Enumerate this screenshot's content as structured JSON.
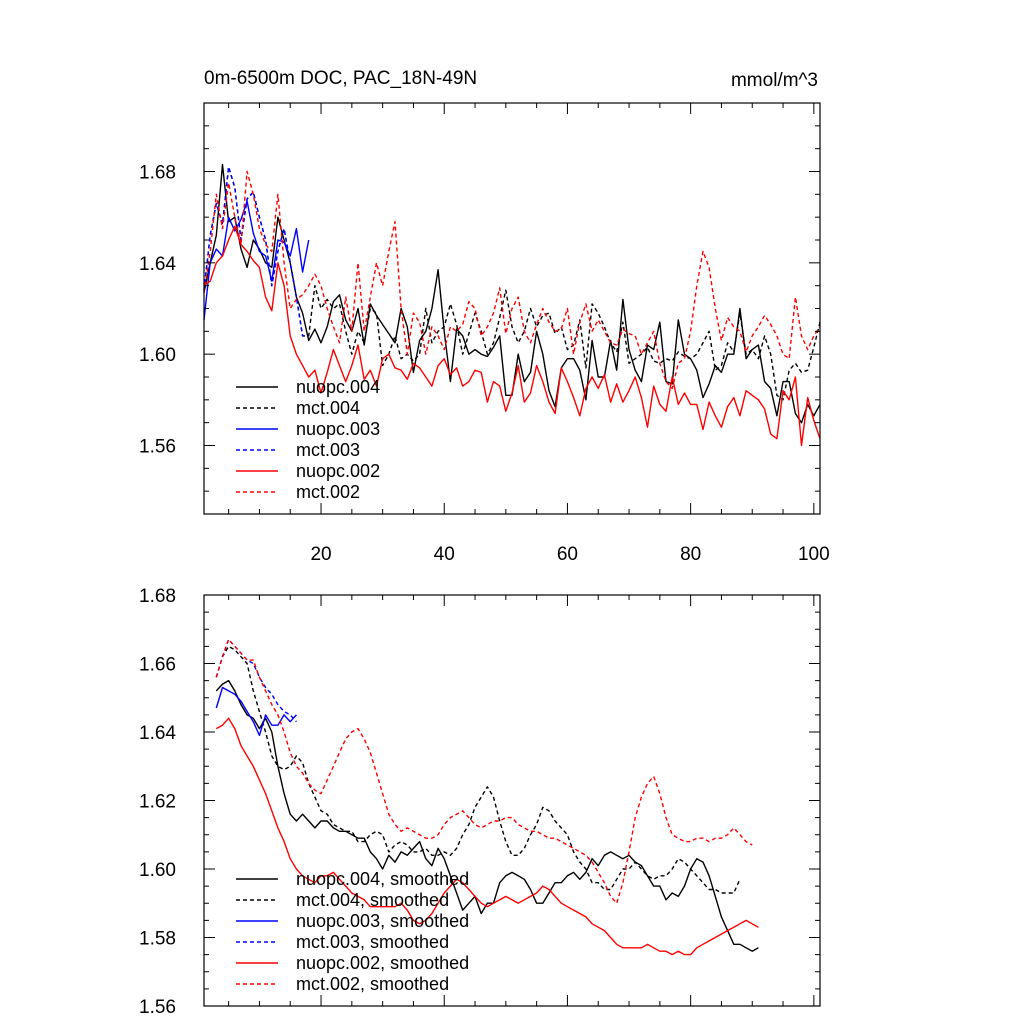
{
  "colors": {
    "black": "#000000",
    "blue": "#0000ff",
    "red": "#ff0000"
  },
  "chart_data": [
    {
      "type": "line",
      "title": "0m-6500m DOC, PAC_18N-49N",
      "units": "mmol/m^3",
      "xlim": [
        1,
        101
      ],
      "ylim": [
        1.53,
        1.71
      ],
      "xticks": [
        20,
        40,
        60,
        80,
        100
      ],
      "xtick_labels": [
        "20",
        "40",
        "60",
        "80",
        "100"
      ],
      "yticks": [
        1.56,
        1.6,
        1.64,
        1.68
      ],
      "ytick_labels": [
        "1.56",
        "1.60",
        "1.64",
        "1.68"
      ],
      "legend_position": "bottom-left",
      "series": [
        {
          "name": "nuopc.004",
          "color": "black",
          "dash": false,
          "x_start": 1,
          "values": [
            1.627,
            1.64,
            1.652,
            1.683,
            1.658,
            1.66,
            1.646,
            1.638,
            1.65,
            1.646,
            1.64,
            1.638,
            1.66,
            1.65,
            1.64,
            1.625,
            1.618,
            1.606,
            1.611,
            1.605,
            1.612,
            1.623,
            1.626,
            1.615,
            1.61,
            1.62,
            1.604,
            1.622,
            1.617,
            1.613,
            1.609,
            1.605,
            1.62,
            1.612,
            1.592,
            1.606,
            1.61,
            1.62,
            1.637,
            1.61,
            1.588,
            1.611,
            1.608,
            1.6,
            1.602,
            1.6,
            1.599,
            1.603,
            1.608,
            1.582,
            1.582,
            1.6,
            1.588,
            1.592,
            1.61,
            1.6,
            1.584,
            1.577,
            1.594,
            1.598,
            1.598,
            1.593,
            1.58,
            1.606,
            1.59,
            1.59,
            1.606,
            1.593,
            1.624,
            1.602,
            1.593,
            1.588,
            1.604,
            1.602,
            1.614,
            1.588,
            1.587,
            1.615,
            1.6,
            1.598,
            1.593,
            1.581,
            1.587,
            1.595,
            1.592,
            1.6,
            1.6,
            1.62,
            1.598,
            1.602,
            1.604,
            1.588,
            1.585,
            1.573,
            1.588,
            1.588,
            1.574,
            1.57,
            1.578,
            1.573,
            1.578
          ]
        },
        {
          "name": "mct.004",
          "color": "black",
          "dash": true,
          "x_start": 1,
          "values": [
            1.628,
            1.652,
            1.666,
            1.657,
            1.682,
            1.673,
            1.65,
            1.668,
            1.671,
            1.66,
            1.65,
            1.63,
            1.645,
            1.655,
            1.64,
            1.625,
            1.608,
            1.608,
            1.63,
            1.62,
            1.624,
            1.62,
            1.622,
            1.61,
            1.6,
            1.61,
            1.605,
            1.62,
            1.618,
            1.595,
            1.6,
            1.608,
            1.598,
            1.6,
            1.597,
            1.6,
            1.62,
            1.605,
            1.61,
            1.612,
            1.622,
            1.613,
            1.6,
            1.609,
            1.618,
            1.61,
            1.6,
            1.605,
            1.616,
            1.628,
            1.612,
            1.605,
            1.61,
            1.62,
            1.612,
            1.617,
            1.618,
            1.609,
            1.612,
            1.602,
            1.604,
            1.615,
            1.594,
            1.622,
            1.618,
            1.612,
            1.605,
            1.601,
            1.614,
            1.596,
            1.598,
            1.6,
            1.603,
            1.597,
            1.596,
            1.598,
            1.597,
            1.601,
            1.599,
            1.598,
            1.6,
            1.605,
            1.61,
            1.593,
            1.595,
            1.605,
            1.601,
            1.618,
            1.6,
            1.602,
            1.598,
            1.608,
            1.6,
            1.582,
            1.58,
            1.593,
            1.596,
            1.592,
            1.593,
            1.603,
            1.614
          ]
        },
        {
          "name": "nuopc.003",
          "color": "blue",
          "dash": false,
          "x_start": 1,
          "values": [
            1.615,
            1.64,
            1.646,
            1.643,
            1.66,
            1.654,
            1.659,
            1.667,
            1.653,
            1.645,
            1.643,
            1.632,
            1.65,
            1.649,
            1.643,
            1.655,
            1.636,
            1.65
          ]
        },
        {
          "name": "mct.003",
          "color": "blue",
          "dash": true,
          "x_start": 1,
          "values": [
            1.628,
            1.652,
            1.666,
            1.657,
            1.682,
            1.673,
            1.65,
            1.668,
            1.671,
            1.66,
            1.65,
            1.63,
            1.645,
            1.655,
            1.64,
            1.625,
            1.608,
            1.608
          ]
        },
        {
          "name": "nuopc.002",
          "color": "red",
          "dash": false,
          "x_start": 1,
          "values": [
            1.63,
            1.632,
            1.64,
            1.643,
            1.65,
            1.656,
            1.648,
            1.645,
            1.641,
            1.638,
            1.625,
            1.619,
            1.64,
            1.63,
            1.608,
            1.6,
            1.595,
            1.59,
            1.593,
            1.583,
            1.592,
            1.602,
            1.595,
            1.588,
            1.595,
            1.604,
            1.589,
            1.593,
            1.586,
            1.598,
            1.6,
            1.594,
            1.593,
            1.589,
            1.596,
            1.594,
            1.59,
            1.586,
            1.595,
            1.598,
            1.591,
            1.594,
            1.586,
            1.588,
            1.593,
            1.592,
            1.579,
            1.588,
            1.586,
            1.575,
            1.583,
            1.595,
            1.579,
            1.583,
            1.595,
            1.588,
            1.579,
            1.574,
            1.594,
            1.588,
            1.581,
            1.573,
            1.585,
            1.59,
            1.585,
            1.591,
            1.579,
            1.587,
            1.579,
            1.584,
            1.59,
            1.581,
            1.568,
            1.586,
            1.578,
            1.575,
            1.59,
            1.578,
            1.583,
            1.578,
            1.578,
            1.567,
            1.579,
            1.573,
            1.568,
            1.577,
            1.581,
            1.573,
            1.584,
            1.582,
            1.58,
            1.576,
            1.565,
            1.563,
            1.584,
            1.58,
            1.59,
            1.56,
            1.581,
            1.571,
            1.563
          ]
        },
        {
          "name": "mct.002",
          "color": "red",
          "dash": true,
          "x_start": 1,
          "values": [
            1.627,
            1.645,
            1.67,
            1.655,
            1.675,
            1.66,
            1.648,
            1.68,
            1.67,
            1.655,
            1.648,
            1.645,
            1.67,
            1.64,
            1.62,
            1.624,
            1.626,
            1.63,
            1.635,
            1.63,
            1.62,
            1.612,
            1.605,
            1.625,
            1.61,
            1.64,
            1.61,
            1.625,
            1.64,
            1.63,
            1.645,
            1.658,
            1.62,
            1.6,
            1.618,
            1.614,
            1.6,
            1.612,
            1.608,
            1.602,
            1.612,
            1.61,
            1.613,
            1.623,
            1.62,
            1.608,
            1.612,
            1.618,
            1.629,
            1.609,
            1.62,
            1.625,
            1.61,
            1.605,
            1.613,
            1.62,
            1.614,
            1.61,
            1.611,
            1.62,
            1.6,
            1.614,
            1.622,
            1.61,
            1.615,
            1.61,
            1.605,
            1.604,
            1.611,
            1.609,
            1.608,
            1.6,
            1.605,
            1.61,
            1.596,
            1.588,
            1.585,
            1.596,
            1.598,
            1.61,
            1.63,
            1.645,
            1.638,
            1.62,
            1.606,
            1.616,
            1.612,
            1.61,
            1.601,
            1.608,
            1.612,
            1.617,
            1.613,
            1.608,
            1.6,
            1.598,
            1.625,
            1.608,
            1.602,
            1.608,
            1.612
          ]
        }
      ]
    },
    {
      "type": "line",
      "title": "",
      "xlim": [
        1,
        101
      ],
      "ylim": [
        1.56,
        1.68
      ],
      "xticks": [
        20,
        40,
        60,
        80,
        100
      ],
      "yticks": [
        1.56,
        1.58,
        1.6,
        1.62,
        1.64,
        1.66,
        1.68
      ],
      "ytick_labels": [
        "1.56",
        "1.58",
        "1.60",
        "1.62",
        "1.64",
        "1.66",
        "1.68"
      ],
      "legend_position": "bottom-left",
      "series": [
        {
          "name": "nuopc.004, smoothed",
          "color": "black",
          "dash": false,
          "x_start": 3,
          "values": [
            1.652,
            1.654,
            1.655,
            1.652,
            1.648,
            1.645,
            1.644,
            1.641,
            1.644,
            1.64,
            1.63,
            1.622,
            1.616,
            1.614,
            1.616,
            1.614,
            1.612,
            1.614,
            1.614,
            1.612,
            1.611,
            1.611,
            1.61,
            1.609,
            1.609,
            1.605,
            1.603,
            1.6,
            1.604,
            1.602,
            1.605,
            1.604,
            1.606,
            1.608,
            1.603,
            1.601,
            1.606,
            1.603,
            1.598,
            1.593,
            1.588,
            1.59,
            1.592,
            1.587,
            1.59,
            1.59,
            1.596,
            1.598,
            1.599,
            1.598,
            1.597,
            1.594,
            1.59,
            1.59,
            1.593,
            1.596,
            1.596,
            1.598,
            1.599,
            1.597,
            1.599,
            1.603,
            1.601,
            1.604,
            1.605,
            1.604,
            1.603,
            1.604,
            1.602,
            1.601,
            1.598,
            1.595,
            1.595,
            1.591,
            1.593,
            1.592,
            1.595,
            1.6,
            1.603,
            1.602,
            1.598,
            1.592,
            1.586,
            1.582,
            1.578,
            1.578,
            1.577,
            1.576,
            1.577
          ]
        },
        {
          "name": "mct.004, smoothed",
          "color": "black",
          "dash": true,
          "x_start": 3,
          "values": [
            1.656,
            1.662,
            1.665,
            1.664,
            1.662,
            1.66,
            1.652,
            1.646,
            1.64,
            1.633,
            1.63,
            1.629,
            1.63,
            1.633,
            1.631,
            1.625,
            1.621,
            1.617,
            1.616,
            1.613,
            1.612,
            1.611,
            1.611,
            1.608,
            1.608,
            1.61,
            1.611,
            1.61,
            1.605,
            1.607,
            1.608,
            1.607,
            1.605,
            1.605,
            1.606,
            1.604,
            1.604,
            1.605,
            1.604,
            1.606,
            1.61,
            1.613,
            1.618,
            1.621,
            1.624,
            1.621,
            1.614,
            1.608,
            1.604,
            1.604,
            1.606,
            1.61,
            1.613,
            1.618,
            1.617,
            1.614,
            1.612,
            1.61,
            1.605,
            1.602,
            1.6,
            1.596,
            1.596,
            1.594,
            1.594,
            1.597,
            1.6,
            1.6,
            1.602,
            1.6,
            1.598,
            1.597,
            1.598,
            1.598,
            1.6,
            1.603,
            1.602,
            1.6,
            1.598,
            1.596,
            1.594,
            1.594,
            1.593,
            1.593,
            1.593,
            1.597
          ]
        },
        {
          "name": "nuopc.003, smoothed",
          "color": "blue",
          "dash": false,
          "x_start": 3,
          "values": [
            1.647,
            1.653,
            1.652,
            1.651,
            1.649,
            1.646,
            1.643,
            1.639,
            1.645,
            1.642,
            1.642,
            1.645,
            1.643,
            1.645
          ]
        },
        {
          "name": "mct.003, smoothed",
          "color": "blue",
          "dash": true,
          "x_start": 3,
          "values": [
            1.656,
            1.662,
            1.667,
            1.665,
            1.663,
            1.661,
            1.66,
            1.656,
            1.653,
            1.651,
            1.648,
            1.646,
            1.645,
            1.643
          ]
        },
        {
          "name": "nuopc.002, smoothed",
          "color": "red",
          "dash": false,
          "x_start": 3,
          "values": [
            1.641,
            1.642,
            1.644,
            1.641,
            1.636,
            1.633,
            1.63,
            1.626,
            1.622,
            1.617,
            1.612,
            1.608,
            1.603,
            1.6,
            1.598,
            1.597,
            1.596,
            1.598,
            1.598,
            1.599,
            1.597,
            1.595,
            1.593,
            1.592,
            1.591,
            1.589,
            1.589,
            1.589,
            1.589,
            1.589,
            1.59,
            1.588,
            1.585,
            1.584,
            1.585,
            1.587,
            1.59,
            1.593,
            1.595,
            1.597,
            1.596,
            1.594,
            1.592,
            1.59,
            1.589,
            1.59,
            1.591,
            1.592,
            1.591,
            1.59,
            1.591,
            1.592,
            1.593,
            1.595,
            1.594,
            1.592,
            1.59,
            1.589,
            1.588,
            1.587,
            1.586,
            1.584,
            1.583,
            1.582,
            1.58,
            1.578,
            1.577,
            1.577,
            1.577,
            1.577,
            1.578,
            1.577,
            1.576,
            1.576,
            1.575,
            1.576,
            1.575,
            1.575,
            1.577,
            1.578,
            1.579,
            1.58,
            1.581,
            1.582,
            1.583,
            1.584,
            1.585,
            1.584,
            1.583
          ]
        },
        {
          "name": "mct.002, smoothed",
          "color": "red",
          "dash": true,
          "x_start": 3,
          "values": [
            1.656,
            1.662,
            1.667,
            1.665,
            1.663,
            1.661,
            1.661,
            1.656,
            1.652,
            1.648,
            1.645,
            1.64,
            1.634,
            1.63,
            1.628,
            1.625,
            1.623,
            1.622,
            1.626,
            1.63,
            1.634,
            1.638,
            1.64,
            1.641,
            1.638,
            1.634,
            1.628,
            1.622,
            1.616,
            1.613,
            1.611,
            1.612,
            1.611,
            1.61,
            1.609,
            1.609,
            1.61,
            1.613,
            1.615,
            1.616,
            1.617,
            1.615,
            1.613,
            1.612,
            1.613,
            1.614,
            1.614,
            1.615,
            1.615,
            1.613,
            1.612,
            1.611,
            1.611,
            1.61,
            1.609,
            1.609,
            1.608,
            1.607,
            1.606,
            1.605,
            1.604,
            1.602,
            1.599,
            1.596,
            1.592,
            1.59,
            1.596,
            1.605,
            1.615,
            1.621,
            1.625,
            1.627,
            1.622,
            1.615,
            1.61,
            1.609,
            1.608,
            1.608,
            1.609,
            1.609,
            1.608,
            1.609,
            1.609,
            1.61,
            1.612,
            1.61,
            1.608,
            1.607
          ]
        }
      ]
    }
  ]
}
